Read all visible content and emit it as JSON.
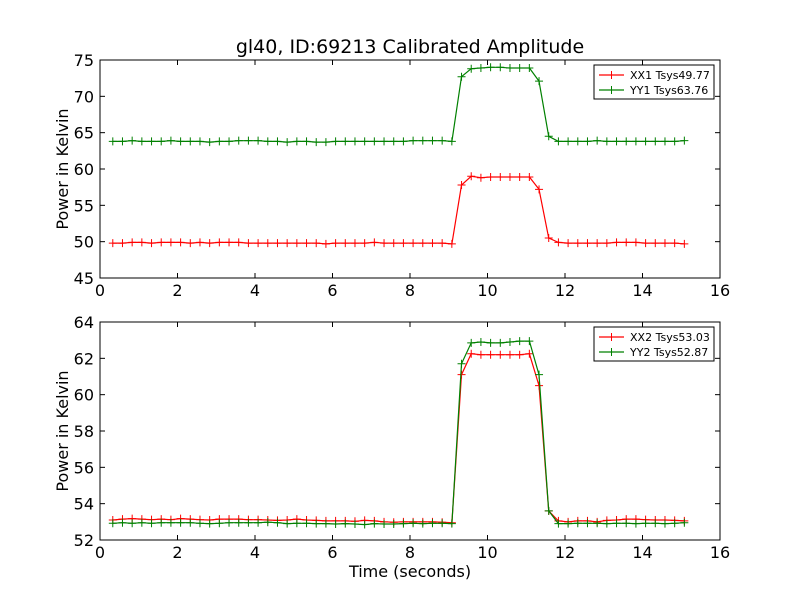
{
  "title": "gl40, ID:69213 Calibrated Amplitude",
  "colors": {
    "xx": "#ff0000",
    "yy": "#008000",
    "axes": "#000000"
  },
  "chart_data": [
    {
      "type": "line",
      "title": "gl40, ID:69213 Calibrated Amplitude",
      "xlabel": "",
      "ylabel": "Power in Kelvin",
      "xlim": [
        0,
        16
      ],
      "ylim": [
        45,
        75
      ],
      "xticks": [
        0,
        2,
        4,
        6,
        8,
        10,
        12,
        14,
        16
      ],
      "yticks": [
        45,
        50,
        55,
        60,
        65,
        70,
        75
      ],
      "grid": false,
      "legend_position": "top-right",
      "x": [
        0.33,
        0.58,
        0.83,
        1.08,
        1.33,
        1.58,
        1.83,
        2.08,
        2.33,
        2.58,
        2.83,
        3.08,
        3.33,
        3.58,
        3.83,
        4.08,
        4.33,
        4.58,
        4.83,
        5.08,
        5.33,
        5.58,
        5.83,
        6.08,
        6.33,
        6.58,
        6.83,
        7.08,
        7.33,
        7.58,
        7.83,
        8.08,
        8.33,
        8.58,
        8.83,
        9.08,
        9.33,
        9.58,
        9.83,
        10.08,
        10.33,
        10.58,
        10.83,
        11.08,
        11.33,
        11.58,
        11.83,
        12.08,
        12.33,
        12.58,
        12.83,
        13.08,
        13.33,
        13.58,
        13.83,
        14.08,
        14.33,
        14.58,
        14.83,
        15.08
      ],
      "series": [
        {
          "name": "XX1 Tsys49.77",
          "color": "#ff0000",
          "values": [
            49.8,
            49.8,
            49.9,
            49.9,
            49.8,
            49.9,
            49.9,
            49.9,
            49.8,
            49.9,
            49.8,
            49.9,
            49.9,
            49.9,
            49.8,
            49.8,
            49.8,
            49.8,
            49.8,
            49.8,
            49.8,
            49.8,
            49.7,
            49.8,
            49.8,
            49.8,
            49.8,
            49.9,
            49.8,
            49.8,
            49.8,
            49.8,
            49.8,
            49.8,
            49.8,
            49.7,
            57.8,
            59.0,
            58.8,
            58.9,
            58.9,
            58.9,
            58.9,
            58.9,
            57.2,
            50.5,
            49.9,
            49.8,
            49.8,
            49.8,
            49.8,
            49.8,
            49.9,
            49.9,
            49.9,
            49.8,
            49.8,
            49.8,
            49.8,
            49.7
          ]
        },
        {
          "name": "YY1 Tsys63.76",
          "color": "#008000",
          "values": [
            63.8,
            63.8,
            63.9,
            63.8,
            63.8,
            63.8,
            63.9,
            63.8,
            63.8,
            63.8,
            63.7,
            63.8,
            63.8,
            63.9,
            63.9,
            63.9,
            63.8,
            63.8,
            63.7,
            63.8,
            63.8,
            63.7,
            63.7,
            63.8,
            63.8,
            63.8,
            63.8,
            63.8,
            63.8,
            63.8,
            63.8,
            63.9,
            63.9,
            63.9,
            63.9,
            63.8,
            72.7,
            73.8,
            73.9,
            74.0,
            74.0,
            73.9,
            73.9,
            73.9,
            72.1,
            64.5,
            63.8,
            63.8,
            63.8,
            63.8,
            63.9,
            63.8,
            63.8,
            63.8,
            63.8,
            63.8,
            63.8,
            63.8,
            63.8,
            63.9
          ]
        }
      ]
    },
    {
      "type": "line",
      "xlabel": "Time (seconds)",
      "ylabel": "Power in Kelvin",
      "xlim": [
        0,
        16
      ],
      "ylim": [
        52,
        64
      ],
      "xticks": [
        0,
        2,
        4,
        6,
        8,
        10,
        12,
        14,
        16
      ],
      "yticks": [
        52,
        54,
        56,
        58,
        60,
        62,
        64
      ],
      "grid": false,
      "legend_position": "top-right",
      "x": [
        0.33,
        0.58,
        0.83,
        1.08,
        1.33,
        1.58,
        1.83,
        2.08,
        2.33,
        2.58,
        2.83,
        3.08,
        3.33,
        3.58,
        3.83,
        4.08,
        4.33,
        4.58,
        4.83,
        5.08,
        5.33,
        5.58,
        5.83,
        6.08,
        6.33,
        6.58,
        6.83,
        7.08,
        7.33,
        7.58,
        7.83,
        8.08,
        8.33,
        8.58,
        8.83,
        9.08,
        9.33,
        9.58,
        9.83,
        10.08,
        10.33,
        10.58,
        10.83,
        11.08,
        11.33,
        11.58,
        11.83,
        12.08,
        12.33,
        12.58,
        12.83,
        13.08,
        13.33,
        13.58,
        13.83,
        14.08,
        14.33,
        14.58,
        14.83,
        15.08
      ],
      "series": [
        {
          "name": "XX2 Tsys53.03",
          "color": "#ff0000",
          "values": [
            53.1,
            53.15,
            53.18,
            53.15,
            53.12,
            53.15,
            53.12,
            53.18,
            53.15,
            53.12,
            53.1,
            53.15,
            53.15,
            53.15,
            53.12,
            53.12,
            53.1,
            53.08,
            53.1,
            53.15,
            53.1,
            53.08,
            53.05,
            53.05,
            53.05,
            53.03,
            53.08,
            53.05,
            53.0,
            52.98,
            53.0,
            53.0,
            53.0,
            53.0,
            52.98,
            52.95,
            61.1,
            62.25,
            62.2,
            62.2,
            62.2,
            62.2,
            62.2,
            62.25,
            60.5,
            53.6,
            53.05,
            53.0,
            53.05,
            53.05,
            53.0,
            53.08,
            53.1,
            53.15,
            53.15,
            53.12,
            53.1,
            53.1,
            53.08,
            53.05
          ]
        },
        {
          "name": "YY2 Tsys52.87",
          "color": "#008000",
          "values": [
            52.92,
            52.95,
            52.92,
            52.95,
            52.92,
            52.95,
            52.95,
            52.95,
            52.95,
            52.92,
            52.9,
            52.92,
            52.95,
            52.95,
            52.95,
            52.95,
            52.98,
            52.95,
            52.9,
            52.92,
            52.92,
            52.9,
            52.9,
            52.88,
            52.9,
            52.88,
            52.85,
            52.9,
            52.88,
            52.88,
            52.9,
            52.92,
            52.9,
            52.92,
            52.92,
            52.9,
            61.7,
            62.85,
            62.9,
            62.85,
            62.85,
            62.9,
            62.95,
            62.95,
            61.1,
            53.6,
            52.9,
            52.9,
            52.92,
            52.92,
            52.92,
            52.9,
            52.92,
            52.92,
            52.9,
            52.92,
            52.92,
            52.9,
            52.92,
            52.95
          ]
        }
      ]
    }
  ]
}
